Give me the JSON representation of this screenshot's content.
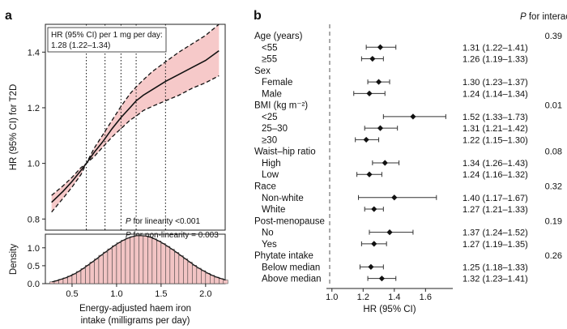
{
  "panel_a": {
    "letter": "a",
    "chart_data": {
      "type": "line",
      "title": "",
      "xlabel": "Energy-adjusted haem iron intake (milligrams per day)",
      "xlabel_line1": "Energy-adjusted haem iron",
      "xlabel_line2": "intake (milligrams per day)",
      "ylabel": "HR (95% CI) for T2D",
      "xlim": [
        0.2,
        2.22
      ],
      "ylim": [
        0.76,
        1.5
      ],
      "x_ticks": [
        0.5,
        1.0,
        1.5,
        2.0
      ],
      "x_tick_labels": [
        "0.5",
        "1.0",
        "1.5",
        "2.0"
      ],
      "y_ticks": [
        0.8,
        1.0,
        1.2,
        1.4
      ],
      "y_tick_labels": [
        "0.8",
        "1.0",
        "1.2",
        "1.4"
      ],
      "annotation_box_line1": "HR (95% CI) per 1 mg per day:",
      "annotation_box_line2": "1.28 (1.22–1.34)",
      "p_linearity_label": "P",
      "p_linearity_text": " for linearity <0.001",
      "p_nonlinearity_label": "P",
      "p_nonlinearity_text": " for non-linearity = 0.003",
      "vertical_dotted_lines_x": [
        0.66,
        0.87,
        1.05,
        1.22,
        1.55
      ],
      "series": [
        {
          "name": "HR",
          "x": [
            0.27,
            0.4,
            0.5,
            0.6,
            0.66,
            0.75,
            0.85,
            0.95,
            1.05,
            1.15,
            1.22,
            1.3,
            1.4,
            1.55,
            1.7,
            1.85,
            2.0,
            2.15
          ],
          "y": [
            0.86,
            0.9,
            0.935,
            0.975,
            1.0,
            1.04,
            1.08,
            1.125,
            1.165,
            1.2,
            1.225,
            1.245,
            1.265,
            1.295,
            1.32,
            1.345,
            1.37,
            1.405
          ]
        },
        {
          "name": "Upper 95% CI",
          "x": [
            0.27,
            0.4,
            0.5,
            0.6,
            0.66,
            0.75,
            0.85,
            0.95,
            1.05,
            1.15,
            1.22,
            1.3,
            1.4,
            1.55,
            1.7,
            1.85,
            2.0,
            2.15
          ],
          "y": [
            0.885,
            0.92,
            0.95,
            0.985,
            1.0,
            1.055,
            1.105,
            1.155,
            1.205,
            1.25,
            1.275,
            1.3,
            1.33,
            1.365,
            1.4,
            1.43,
            1.46,
            1.5
          ]
        },
        {
          "name": "Lower 95% CI",
          "x": [
            0.27,
            0.4,
            0.5,
            0.6,
            0.66,
            0.75,
            0.85,
            0.95,
            1.05,
            1.15,
            1.22,
            1.3,
            1.4,
            1.55,
            1.7,
            1.85,
            2.0,
            2.15
          ],
          "y": [
            0.825,
            0.875,
            0.915,
            0.96,
            1.0,
            1.025,
            1.06,
            1.095,
            1.125,
            1.155,
            1.17,
            1.19,
            1.205,
            1.225,
            1.245,
            1.27,
            1.29,
            1.315
          ]
        }
      ]
    },
    "density_chart": {
      "type": "bar",
      "ylabel": "Density",
      "y_ticks": [
        0.0,
        0.5,
        1.0
      ],
      "y_tick_labels": [
        "0.0",
        "0.5",
        "1.0"
      ],
      "ylim": [
        0,
        1.38
      ],
      "bin_start": 0.25,
      "bin_width": 0.05,
      "values": [
        0.05,
        0.08,
        0.12,
        0.16,
        0.21,
        0.27,
        0.34,
        0.42,
        0.51,
        0.6,
        0.69,
        0.79,
        0.88,
        0.97,
        1.06,
        1.14,
        1.21,
        1.27,
        1.31,
        1.34,
        1.34,
        1.33,
        1.3,
        1.25,
        1.19,
        1.12,
        1.04,
        0.96,
        0.87,
        0.78,
        0.69,
        0.6,
        0.51,
        0.43,
        0.36,
        0.29,
        0.23,
        0.18,
        0.14,
        0.1
      ]
    }
  },
  "panel_b": {
    "letter": "b",
    "p_header_label": "P",
    "p_header_text": " for interaction",
    "chart_data": {
      "type": "scatter",
      "subtype": "forest",
      "xlabel": "HR (95% CI)",
      "xlim": [
        0.97,
        1.78
      ],
      "x_ticks": [
        1.0,
        1.2,
        1.4,
        1.6
      ],
      "x_tick_labels": [
        "1.0",
        "1.2",
        "1.4",
        "1.6"
      ],
      "reference_line": 1.0,
      "rows": [
        {
          "label": "Age (years)",
          "kind": "group",
          "p": "0.39"
        },
        {
          "label": "<55",
          "kind": "sub",
          "hr": 1.31,
          "lo": 1.22,
          "hi": 1.41,
          "ci_text": "1.31 (1.22–1.41)"
        },
        {
          "label": "≥55",
          "kind": "sub",
          "hr": 1.26,
          "lo": 1.19,
          "hi": 1.33,
          "ci_text": "1.26 (1.19–1.33)"
        },
        {
          "label": "Sex",
          "kind": "group",
          "p": ""
        },
        {
          "label": "Female",
          "kind": "sub",
          "hr": 1.3,
          "lo": 1.23,
          "hi": 1.37,
          "ci_text": "1.30 (1.23–1.37)"
        },
        {
          "label": "Male",
          "kind": "sub",
          "hr": 1.24,
          "lo": 1.14,
          "hi": 1.34,
          "ci_text": "1.24 (1.14–1.34)"
        },
        {
          "label": "BMI (kg m⁻²)",
          "kind": "group",
          "p": "0.01"
        },
        {
          "label": "<25",
          "kind": "sub",
          "hr": 1.52,
          "lo": 1.33,
          "hi": 1.73,
          "ci_text": "1.52 (1.33–1.73)"
        },
        {
          "label": "25–30",
          "kind": "sub",
          "hr": 1.31,
          "lo": 1.21,
          "hi": 1.42,
          "ci_text": "1.31 (1.21–1.42)"
        },
        {
          "label": "≥30",
          "kind": "sub",
          "hr": 1.22,
          "lo": 1.15,
          "hi": 1.3,
          "ci_text": "1.22 (1.15–1.30)"
        },
        {
          "label": "Waist–hip ratio",
          "kind": "group",
          "p": "0.08"
        },
        {
          "label": "High",
          "kind": "sub",
          "hr": 1.34,
          "lo": 1.26,
          "hi": 1.43,
          "ci_text": "1.34 (1.26–1.43)"
        },
        {
          "label": "Low",
          "kind": "sub",
          "hr": 1.24,
          "lo": 1.16,
          "hi": 1.32,
          "ci_text": "1.24 (1.16–1.32)"
        },
        {
          "label": "Race",
          "kind": "group",
          "p": "0.32"
        },
        {
          "label": "Non-white",
          "kind": "sub",
          "hr": 1.4,
          "lo": 1.17,
          "hi": 1.67,
          "ci_text": "1.40 (1.17–1.67)"
        },
        {
          "label": "White",
          "kind": "sub",
          "hr": 1.27,
          "lo": 1.21,
          "hi": 1.33,
          "ci_text": "1.27 (1.21–1.33)"
        },
        {
          "label": "Post-menopause",
          "kind": "group",
          "p": "0.19"
        },
        {
          "label": "No",
          "kind": "sub",
          "hr": 1.37,
          "lo": 1.24,
          "hi": 1.52,
          "ci_text": "1.37 (1.24–1.52)"
        },
        {
          "label": "Yes",
          "kind": "sub",
          "hr": 1.27,
          "lo": 1.19,
          "hi": 1.35,
          "ci_text": "1.27 (1.19–1.35)"
        },
        {
          "label": "Phytate intake",
          "kind": "group",
          "p": "0.26"
        },
        {
          "label": "Below median",
          "kind": "sub",
          "hr": 1.25,
          "lo": 1.18,
          "hi": 1.33,
          "ci_text": "1.25 (1.18–1.33)"
        },
        {
          "label": "Above median",
          "kind": "sub",
          "hr": 1.32,
          "lo": 1.23,
          "hi": 1.41,
          "ci_text": "1.32 (1.23–1.41)"
        }
      ]
    }
  },
  "colors": {
    "band_fill": "#f6c9c9",
    "hist_fill": "#f2c4c4",
    "line": "#111111",
    "axis": "#222222"
  }
}
